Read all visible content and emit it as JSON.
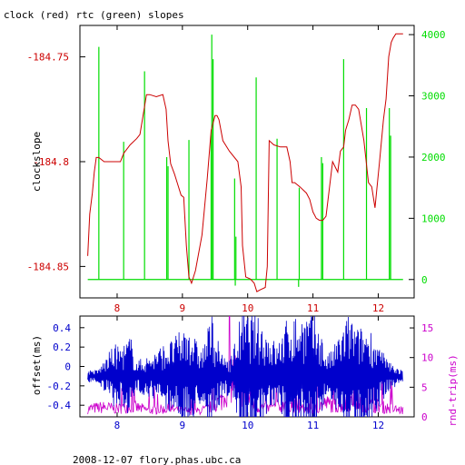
{
  "chart_data": [
    {
      "type": "line",
      "title": "clock (red) rtc (green) slopes",
      "ylabel_left": "clockslope",
      "colors": {
        "clock": "#cc0000",
        "rtc": "#00dd00",
        "frame": "#000000"
      },
      "xlim": [
        7.43,
        12.55
      ],
      "ylim_left": [
        -184.865,
        -184.735
      ],
      "ylim_right": [
        -300,
        4150
      ],
      "x_ticks": [
        8,
        9,
        10,
        11,
        12
      ],
      "y_ticks_left": [
        -184.75,
        -184.8,
        -184.85
      ],
      "y_tick_labels_left": [
        "-184.75",
        "-184.8",
        "-184.85"
      ],
      "y_ticks_right": [
        0,
        1000,
        2000,
        3000,
        4000
      ],
      "series": [
        {
          "key": "clock",
          "axis": "left",
          "x": [
            7.55,
            7.58,
            7.62,
            7.65,
            7.68,
            7.72,
            7.8,
            7.9,
            8.0,
            8.05,
            8.1,
            8.2,
            8.3,
            8.35,
            8.45,
            8.5,
            8.6,
            8.7,
            8.75,
            8.78,
            8.82,
            8.88,
            8.92,
            8.98,
            9.02,
            9.06,
            9.1,
            9.14,
            9.2,
            9.3,
            9.38,
            9.44,
            9.5,
            9.53,
            9.56,
            9.62,
            9.72,
            9.85,
            9.9,
            9.92,
            9.97,
            10.04,
            10.1,
            10.14,
            10.2,
            10.27,
            10.3,
            10.33,
            10.4,
            10.5,
            10.6,
            10.65,
            10.68,
            10.72,
            10.8,
            10.9,
            10.95,
            11.0,
            11.05,
            11.1,
            11.15,
            11.2,
            11.3,
            11.38,
            11.42,
            11.47,
            11.5,
            11.55,
            11.6,
            11.65,
            11.7,
            11.78,
            11.85,
            11.9,
            11.95,
            12.02,
            12.08,
            12.12,
            12.16,
            12.2,
            12.23,
            12.27,
            12.3,
            12.35,
            12.38
          ],
          "y": [
            -184.845,
            -184.825,
            -184.815,
            -184.805,
            -184.798,
            -184.798,
            -184.8,
            -184.8,
            -184.8,
            -184.8,
            -184.796,
            -184.792,
            -184.789,
            -184.787,
            -184.768,
            -184.768,
            -184.769,
            -184.768,
            -184.775,
            -184.79,
            -184.801,
            -184.806,
            -184.81,
            -184.816,
            -184.817,
            -184.84,
            -184.855,
            -184.858,
            -184.852,
            -184.835,
            -184.808,
            -184.785,
            -184.778,
            -184.778,
            -184.78,
            -184.79,
            -184.795,
            -184.8,
            -184.812,
            -184.84,
            -184.855,
            -184.856,
            -184.858,
            -184.862,
            -184.861,
            -184.86,
            -184.85,
            -184.79,
            -184.792,
            -184.793,
            -184.793,
            -184.8,
            -184.81,
            -184.81,
            -184.812,
            -184.815,
            -184.818,
            -184.824,
            -184.827,
            -184.828,
            -184.828,
            -184.826,
            -184.8,
            -184.805,
            -184.795,
            -184.793,
            -184.785,
            -184.78,
            -184.773,
            -184.773,
            -184.775,
            -184.79,
            -184.81,
            -184.812,
            -184.822,
            -184.8,
            -184.78,
            -184.77,
            -184.75,
            -184.743,
            -184.741,
            -184.739,
            -184.739,
            -184.739,
            -184.739
          ]
        },
        {
          "key": "rtc",
          "axis": "right",
          "baseline": 0,
          "x_range": [
            7.55,
            12.38
          ],
          "spikes": [
            {
              "x": 7.72,
              "y": 3800
            },
            {
              "x": 8.1,
              "y": 2250
            },
            {
              "x": 8.42,
              "y": 3400
            },
            {
              "x": 8.76,
              "y": 2000
            },
            {
              "x": 8.78,
              "y": 1850
            },
            {
              "x": 9.1,
              "y": 2280
            },
            {
              "x": 9.44,
              "y": 2350
            },
            {
              "x": 9.45,
              "y": 4000
            },
            {
              "x": 9.47,
              "y": 3600
            },
            {
              "x": 9.8,
              "y": 1650
            },
            {
              "x": 9.82,
              "y": 700
            },
            {
              "x": 10.13,
              "y": 3300
            },
            {
              "x": 10.45,
              "y": 2300
            },
            {
              "x": 10.79,
              "y": 1500
            },
            {
              "x": 11.13,
              "y": 2000
            },
            {
              "x": 11.15,
              "y": 1900
            },
            {
              "x": 11.47,
              "y": 3600
            },
            {
              "x": 11.82,
              "y": 2800
            },
            {
              "x": 12.17,
              "y": 2800
            },
            {
              "x": 12.19,
              "y": 2350
            }
          ],
          "dips": [
            {
              "x": 9.81,
              "y": -100
            },
            {
              "x": 10.78,
              "y": -120
            }
          ]
        }
      ]
    },
    {
      "type": "line",
      "ylabel_left": "offset(ms)",
      "ylabel_right": "rnd-trip(ms)",
      "colors": {
        "offset": "#0000cc",
        "rndtrip": "#cc00cc",
        "frame": "#000000"
      },
      "xlim": [
        7.43,
        12.55
      ],
      "ylim_left": [
        -0.52,
        0.52
      ],
      "ylim_right": [
        0,
        17
      ],
      "x_ticks": [
        8,
        9,
        10,
        11,
        12
      ],
      "y_ticks_left": [
        0.4,
        0.2,
        0,
        -0.2,
        -0.4
      ],
      "y_tick_labels_left": [
        "0.4",
        "0.2",
        "0",
        "-0.2",
        "-0.4"
      ],
      "y_ticks_right": [
        0,
        5,
        10,
        15
      ],
      "series": [
        {
          "key": "offset",
          "axis": "left",
          "x_range": [
            7.55,
            12.38
          ],
          "envelope": {
            "x": [
              7.55,
              7.7,
              7.8,
              7.95,
              8.1,
              8.2,
              8.3,
              8.5,
              8.7,
              8.85,
              9.0,
              9.1,
              9.2,
              9.3,
              9.45,
              9.6,
              9.75,
              9.9,
              10.0,
              10.1,
              10.3,
              10.45,
              10.6,
              10.8,
              11.0,
              11.1,
              11.2,
              11.3,
              11.4,
              11.55,
              11.7,
              11.85,
              12.0,
              12.15,
              12.38
            ],
            "amp": [
              0.06,
              0.06,
              0.15,
              0.3,
              0.3,
              0.4,
              0.15,
              0.2,
              0.3,
              0.35,
              0.45,
              0.55,
              0.35,
              0.25,
              0.6,
              0.2,
              0.2,
              0.6,
              0.6,
              0.6,
              0.45,
              0.3,
              0.55,
              0.6,
              0.6,
              0.5,
              0.2,
              0.25,
              0.4,
              0.6,
              0.45,
              0.5,
              0.3,
              0.15,
              0.05
            ]
          }
        },
        {
          "key": "rndtrip",
          "axis": "right",
          "x_range": [
            7.55,
            12.38
          ],
          "envelope": {
            "x": [
              7.55,
              7.8,
              8.0,
              8.2,
              8.5,
              8.8,
              9.0,
              9.2,
              9.4,
              9.5,
              9.6,
              9.7,
              9.8,
              9.9,
              10.0,
              10.1,
              10.3,
              10.5,
              10.6,
              10.8,
              11.0,
              11.2,
              11.4,
              11.6,
              11.8,
              12.0,
              12.2,
              12.38
            ],
            "base": [
              1.5,
              1.8,
              1.5,
              2.0,
              1.2,
              1.5,
              1.2,
              1.0,
              1.5,
              2.5,
              3.0,
              6.0,
              8.0,
              5.0,
              4.0,
              2.0,
              1.5,
              2.0,
              3.0,
              1.5,
              1.5,
              2.5,
              2.0,
              3.0,
              2.5,
              2.0,
              1.5,
              1.2
            ]
          }
        }
      ]
    }
  ],
  "footer": "2008-12-07 flory.phas.ubc.ca"
}
